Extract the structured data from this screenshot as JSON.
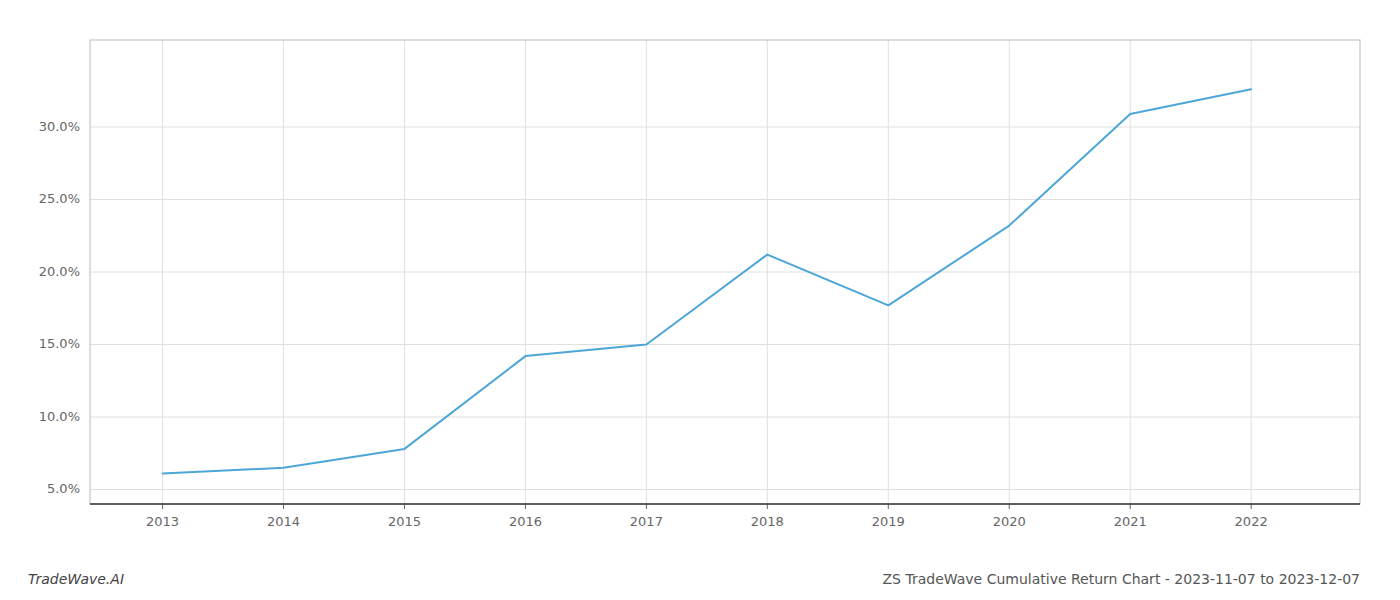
{
  "chart_data": {
    "type": "line",
    "title": "ZS TradeWave Cumulative Return Chart - 2023-11-07 to 2023-12-07",
    "annotations": [
      "TradeWave.AI"
    ],
    "x": [
      2013,
      2014,
      2015,
      2016,
      2017,
      2018,
      2019,
      2020,
      2021,
      2022
    ],
    "values": [
      6.1,
      6.5,
      7.8,
      14.2,
      15.0,
      21.2,
      17.7,
      23.2,
      30.9,
      32.6
    ],
    "color": "#4da6d8",
    "xlim": [
      2012.4,
      2022.9
    ],
    "xticks": [
      2013,
      2014,
      2015,
      2016,
      2017,
      2018,
      2019,
      2020,
      2021,
      2022
    ],
    "ylim": [
      4.0,
      36.0
    ],
    "yticks": [
      {
        "value": 5.0,
        "label": "5.0%"
      },
      {
        "value": 10.0,
        "label": "10.0%"
      },
      {
        "value": 15.0,
        "label": "15.0%"
      },
      {
        "value": 20.0,
        "label": "20.0%"
      },
      {
        "value": 25.0,
        "label": "25.0%"
      },
      {
        "value": 30.0,
        "label": "30.0%"
      }
    ],
    "grid": true
  }
}
